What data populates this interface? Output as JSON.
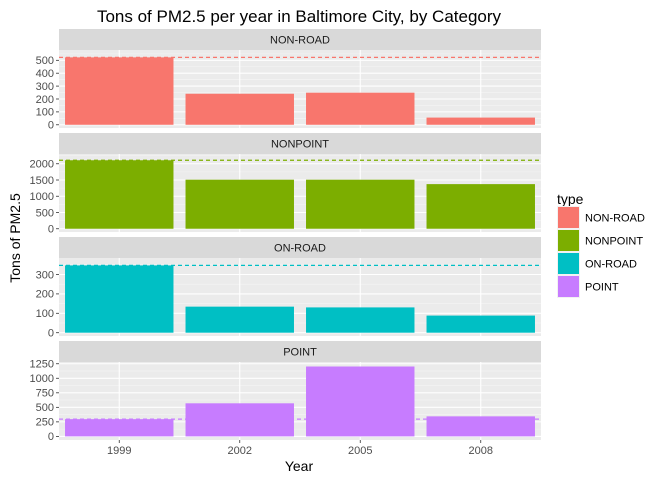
{
  "chart_data": {
    "type": "bar",
    "title": "Tons of PM2.5 per year in Baltimore City, by Category",
    "xlabel": "Year",
    "ylabel": "Tons of PM2.5",
    "categories": [
      "1999",
      "2002",
      "2005",
      "2008"
    ],
    "grid": true,
    "legend": {
      "title": "type",
      "position": "right",
      "entries": [
        "NON-ROAD",
        "NONPOINT",
        "ON-ROAD",
        "POINT"
      ]
    },
    "facets": [
      {
        "name": "NON-ROAD",
        "color": "#F8766D",
        "values": [
          522.9,
          240.8,
          248.9,
          55.8
        ],
        "reference_line": 522.9,
        "ylim": [
          -25,
          580
        ],
        "yticks": [
          0,
          100,
          200,
          300,
          400,
          500
        ],
        "ytick_labels": [
          "0",
          "100",
          "200",
          "300",
          "400",
          "500"
        ]
      },
      {
        "name": "NONPOINT",
        "color": "#7CAE00",
        "values": [
          2107.6,
          1509.5,
          1509.5,
          1373.2
        ],
        "reference_line": 2107.6,
        "ylim": [
          -100,
          2300
        ],
        "yticks": [
          0,
          500,
          1000,
          1500,
          2000
        ],
        "ytick_labels": [
          "0",
          "500",
          "1000",
          "1500",
          "2000"
        ]
      },
      {
        "name": "ON-ROAD",
        "color": "#00BFC4",
        "values": [
          346.8,
          134.3,
          130.4,
          88.3
        ],
        "reference_line": 346.8,
        "ylim": [
          -17,
          385
        ],
        "yticks": [
          0,
          100,
          200,
          300
        ],
        "ytick_labels": [
          "0",
          "100",
          "200",
          "300"
        ]
      },
      {
        "name": "POINT",
        "color": "#C77CFF",
        "values": [
          296.8,
          569.3,
          1202.5,
          344.98
        ],
        "reference_line": 296.8,
        "ylim": [
          -62,
          1280
        ],
        "yticks": [
          0,
          250,
          500,
          750,
          1000,
          1250
        ],
        "ytick_labels": [
          "0",
          "250",
          "500",
          "750",
          "1000",
          "1250"
        ]
      }
    ]
  }
}
